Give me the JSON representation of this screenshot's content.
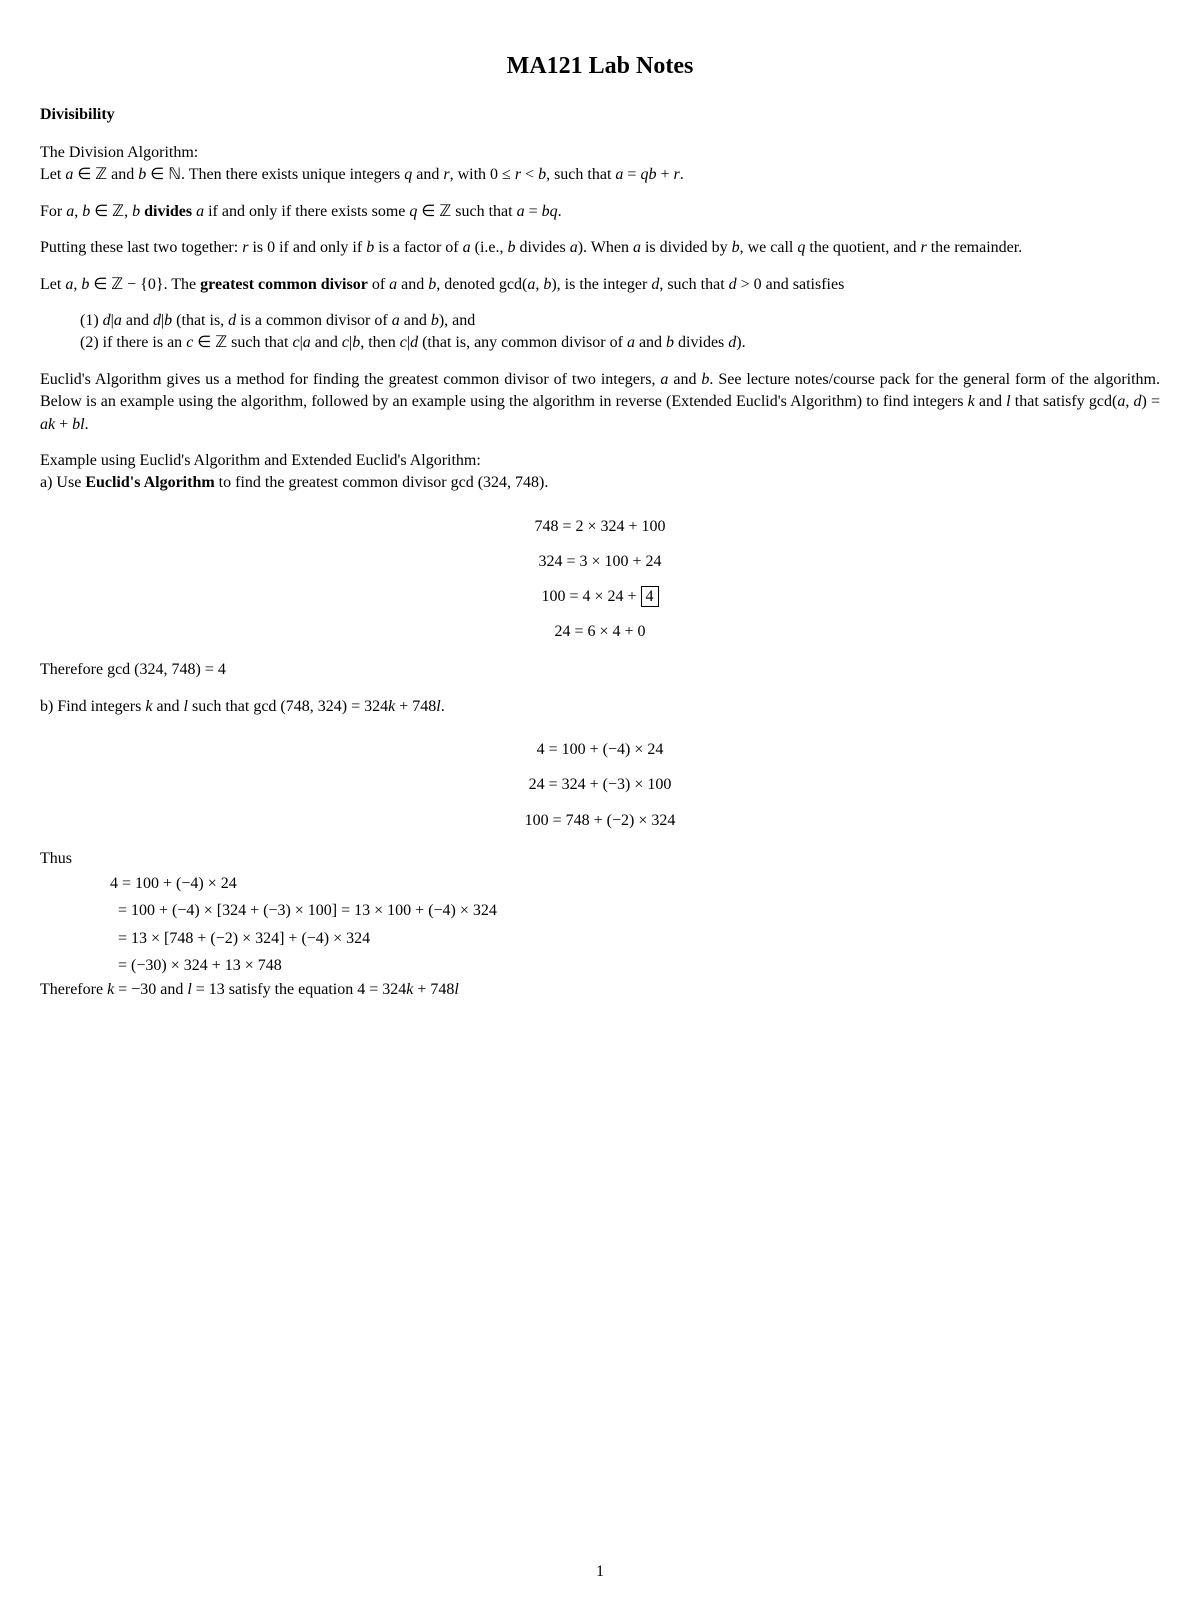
{
  "title": "MA121 Lab Notes",
  "section_heading": "Divisibility",
  "p1_line1": "The Division Algorithm:",
  "p3_prefix": "For ",
  "p3_mid1": ", ",
  "p3_word": " divides",
  "p3_rest": " if and only if there exists some ",
  "p3_end": " such that ",
  "cond1_prefix": "(1) ",
  "cond1_mid": " and ",
  "cond1_rest": " (that is, ",
  "cond1_end": " is a common divisor of ",
  "cond1_and": " and ",
  "cond1_close": "), and",
  "cond2_prefix": "(2) if there is an ",
  "cond2_mid": " such that ",
  "cond2_and": " and ",
  "cond2_then": ", then ",
  "cond2_rest": " (that is, any common divisor of ",
  "cond2_and2": " and ",
  "cond2_div": " divides ",
  "cond2_close": ").",
  "example_intro": "Example using Euclid's Algorithm and Extended Euclid's Algorithm:",
  "part_a_prefix": "a) Use ",
  "part_a_bold": "Euclid's Algorithm",
  "part_a_rest": " to find the greatest common divisor gcd (324, 748).",
  "eq1": "748 = 2 × 324 + 100",
  "eq2": "324 = 3 × 100 + 24",
  "eq3_left": "100 = 4 × 24 + ",
  "eq3_box": "4",
  "eq4": "24 = 6 × 4 + 0",
  "therefore_a": "Therefore gcd (324, 748) = 4",
  "part_b": "b) Find integers ",
  "part_b_and": " and ",
  "part_b_rest": " such that gcd (748, 324) = 324",
  "part_b_end": " + 748",
  "eq5": "4 = 100 + (−4) × 24",
  "eq6": "24 = 324 + (−3) × 100",
  "eq7": "100 = 748 + (−2) × 324",
  "thus": "Thus",
  "work1": "4 = 100 + (−4) × 24",
  "work2_pre": "  = 100 + (−4) × [324 + (−3) × 100] = 13 × 100 + (−4) × 324",
  "work3": "  = 13 × [748 + (−2) × 324] + (−4) × 324",
  "work4": "  = (−30) × 324 + 13 × 748",
  "therefore_b_pre": "Therefore ",
  "therefore_b_k": " = −30 and ",
  "therefore_b_l": " = 13 satisfy the equation 4 = 324",
  "therefore_b_end": " + 748",
  "page_number": "1"
}
